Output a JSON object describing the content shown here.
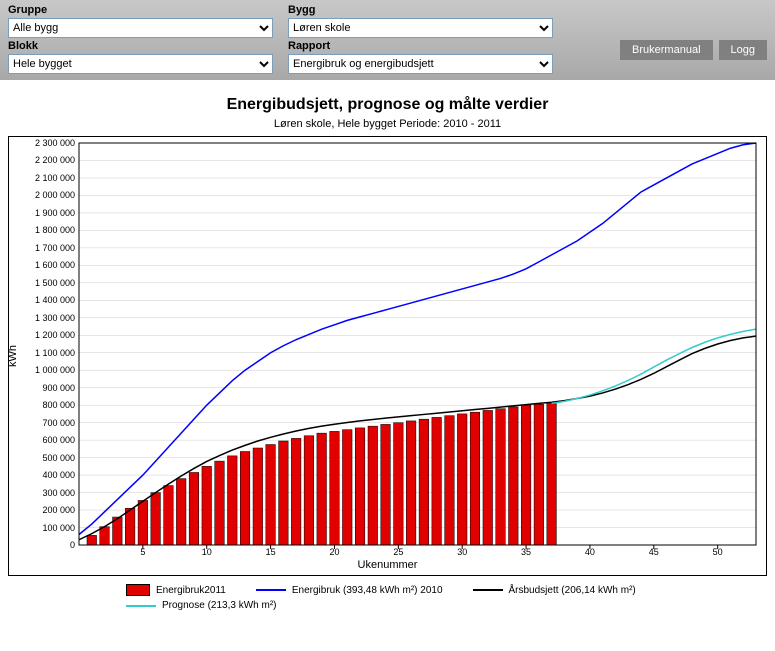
{
  "filters": {
    "gruppe_label": "Gruppe",
    "gruppe_value": "Alle bygg",
    "blokk_label": "Blokk",
    "blokk_value": "Hele bygget",
    "bygg_label": "Bygg",
    "bygg_value": "Løren skole",
    "rapport_label": "Rapport",
    "rapport_value": "Energibruk og energibudsjett"
  },
  "buttons": {
    "manual": "Brukermanual",
    "logg": "Logg"
  },
  "chart": {
    "title": "Energibudsjett, prognose og målte verdier",
    "subtitle": "Løren skole, Hele bygget Periode: 2010 - 2011",
    "ylabel": "kWh",
    "xlabel": "Ukenummer",
    "background_color": "#ffffff",
    "grid_color": "#cccccc",
    "border_color": "#000000",
    "xlim": [
      0,
      53
    ],
    "ylim": [
      0,
      2300000
    ],
    "ytick_step": 100000,
    "yticks": [
      0,
      100000,
      200000,
      300000,
      400000,
      500000,
      600000,
      700000,
      800000,
      900000,
      1000000,
      1100000,
      1200000,
      1300000,
      1400000,
      1500000,
      1600000,
      1700000,
      1800000,
      1900000,
      2000000,
      2100000,
      2200000,
      2300000
    ],
    "xticks": [
      5,
      10,
      15,
      20,
      25,
      30,
      35,
      40,
      45,
      50
    ],
    "series": {
      "bars": {
        "label": "Energibruk2011",
        "color": "#e00000",
        "border": "#000000",
        "x": [
          1,
          2,
          3,
          4,
          5,
          6,
          7,
          8,
          9,
          10,
          11,
          12,
          13,
          14,
          15,
          16,
          17,
          18,
          19,
          20,
          21,
          22,
          23,
          24,
          25,
          26,
          27,
          28,
          29,
          30,
          31,
          32,
          33,
          34,
          35,
          36,
          37
        ],
        "y": [
          55000,
          105000,
          160000,
          210000,
          255000,
          300000,
          340000,
          380000,
          415000,
          450000,
          480000,
          510000,
          535000,
          555000,
          575000,
          595000,
          610000,
          625000,
          640000,
          650000,
          660000,
          670000,
          680000,
          690000,
          700000,
          710000,
          720000,
          730000,
          740000,
          750000,
          760000,
          770000,
          780000,
          790000,
          800000,
          805000,
          810000
        ]
      },
      "energibruk2010": {
        "label": "Energibruk (393,48 kWh m²) 2010",
        "color": "#0000ff",
        "width": 1.5,
        "x": [
          0,
          1,
          2,
          3,
          4,
          5,
          6,
          7,
          8,
          9,
          10,
          11,
          12,
          13,
          14,
          15,
          16,
          17,
          18,
          19,
          20,
          21,
          22,
          23,
          24,
          25,
          26,
          27,
          28,
          29,
          30,
          31,
          32,
          33,
          34,
          35,
          36,
          37,
          38,
          39,
          40,
          41,
          42,
          43,
          44,
          45,
          46,
          47,
          48,
          49,
          50,
          51,
          52,
          53
        ],
        "y": [
          60000,
          120000,
          190000,
          260000,
          330000,
          400000,
          480000,
          560000,
          640000,
          720000,
          800000,
          870000,
          940000,
          1000000,
          1050000,
          1100000,
          1140000,
          1175000,
          1205000,
          1235000,
          1260000,
          1285000,
          1305000,
          1325000,
          1345000,
          1365000,
          1385000,
          1405000,
          1425000,
          1445000,
          1465000,
          1485000,
          1505000,
          1525000,
          1550000,
          1580000,
          1620000,
          1660000,
          1700000,
          1740000,
          1790000,
          1840000,
          1900000,
          1960000,
          2020000,
          2060000,
          2100000,
          2140000,
          2180000,
          2210000,
          2240000,
          2270000,
          2290000,
          2300000
        ]
      },
      "arsbudsjett": {
        "label": "Årsbudsjett (206,14 kWh m²)",
        "color": "#000000",
        "width": 1.5,
        "x": [
          0,
          1,
          2,
          3,
          4,
          5,
          6,
          7,
          8,
          9,
          10,
          11,
          12,
          13,
          14,
          15,
          16,
          17,
          18,
          19,
          20,
          21,
          22,
          23,
          24,
          25,
          26,
          27,
          28,
          29,
          30,
          31,
          32,
          33,
          34,
          35,
          36,
          37,
          38,
          39,
          40,
          41,
          42,
          43,
          44,
          45,
          46,
          47,
          48,
          49,
          50,
          51,
          52,
          53
        ],
        "y": [
          30000,
          65000,
          105000,
          150000,
          200000,
          250000,
          300000,
          348000,
          395000,
          438000,
          478000,
          512000,
          543000,
          570000,
          595000,
          616000,
          635000,
          652000,
          667000,
          680000,
          691000,
          701000,
          710000,
          718000,
          726000,
          733000,
          740000,
          747000,
          754000,
          761000,
          768000,
          775000,
          782000,
          789000,
          796000,
          803000,
          810000,
          817000,
          826000,
          838000,
          852000,
          870000,
          892000,
          918000,
          948000,
          982000,
          1020000,
          1058000,
          1095000,
          1125000,
          1150000,
          1170000,
          1185000,
          1195000
        ]
      },
      "prognose": {
        "label": "Prognose (213,3 kWh m²)",
        "color": "#33cccc",
        "width": 1.5,
        "x": [
          37,
          38,
          39,
          40,
          41,
          42,
          43,
          44,
          45,
          46,
          47,
          48,
          49,
          50,
          51,
          52,
          53
        ],
        "y": [
          810000,
          822000,
          838000,
          858000,
          882000,
          910000,
          942000,
          978000,
          1018000,
          1058000,
          1095000,
          1130000,
          1160000,
          1185000,
          1205000,
          1222000,
          1235000
        ]
      }
    }
  },
  "legend_order": [
    "bars",
    "energibruk2010",
    "arsbudsjett",
    "prognose"
  ]
}
